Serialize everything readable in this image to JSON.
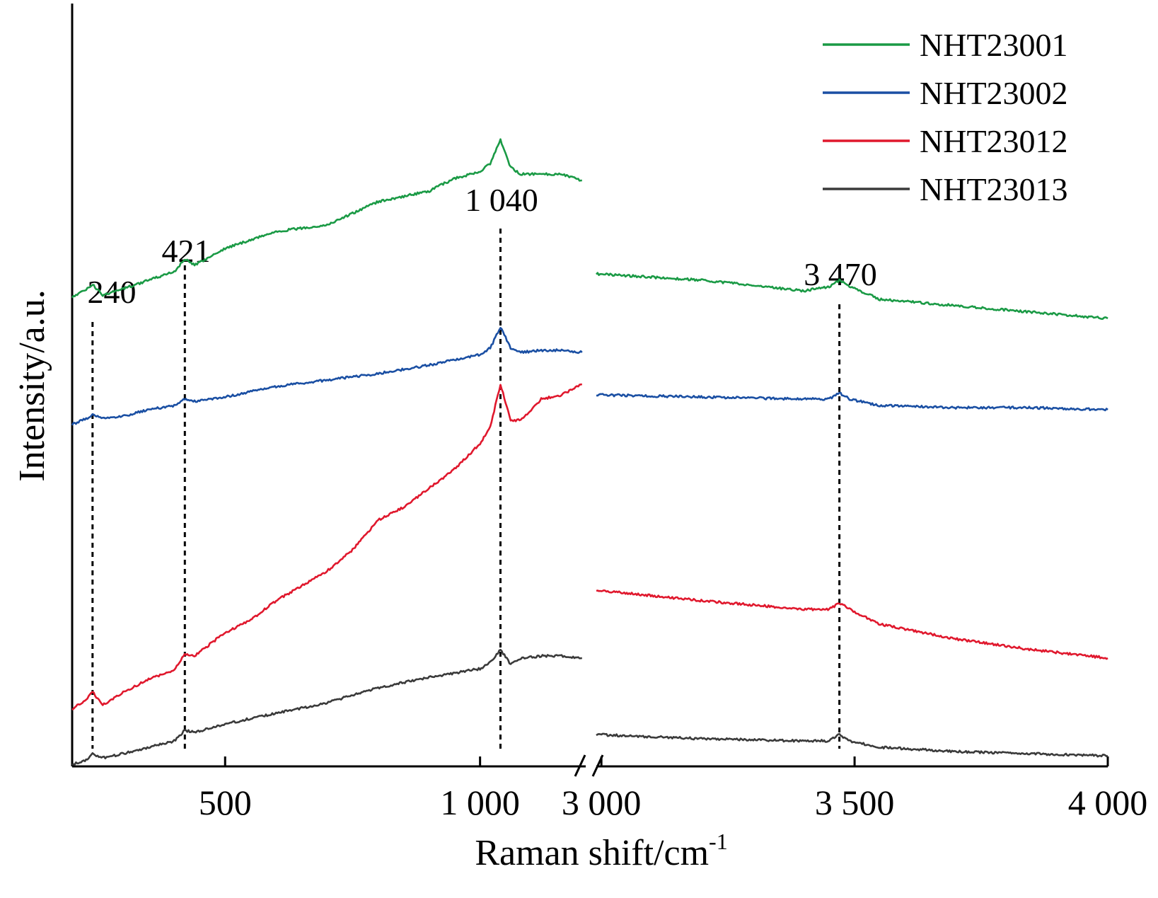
{
  "chart_data": {
    "type": "line",
    "xlabel": "Raman shift/cm",
    "xlabel_superscript": "-1",
    "ylabel": "Intensity/a.u.",
    "y_ticks": "none",
    "x_axis_break": true,
    "segments": [
      {
        "xlim": [
          200,
          1210
        ],
        "ticks": [
          {
            "value": 500,
            "label": "500"
          },
          {
            "value": 1000,
            "label": "1 000"
          }
        ]
      },
      {
        "xlim": [
          2990,
          4000
        ],
        "ticks": [
          {
            "value": 3000,
            "label": "3 000"
          },
          {
            "value": 3500,
            "label": "3 500"
          },
          {
            "value": 4000,
            "label": "4 000"
          }
        ]
      }
    ],
    "legend": {
      "position": "top-right"
    },
    "peaks": [
      {
        "x": 240,
        "label": "240"
      },
      {
        "x": 421,
        "label": "421"
      },
      {
        "x": 1040,
        "label": "1 040"
      },
      {
        "x": 3470,
        "label": "3 470"
      }
    ],
    "series": [
      {
        "name": "NHT23001",
        "color": "#1a9a45",
        "left": {
          "x": [
            200,
            230,
            240,
            260,
            300,
            350,
            400,
            421,
            440,
            500,
            600,
            700,
            800,
            900,
            950,
            1000,
            1020,
            1040,
            1060,
            1080,
            1120,
            1160,
            1200
          ],
          "y": [
            0.6,
            0.62,
            0.63,
            0.605,
            0.62,
            0.64,
            0.66,
            0.69,
            0.675,
            0.715,
            0.755,
            0.77,
            0.825,
            0.85,
            0.88,
            0.895,
            0.915,
            0.97,
            0.905,
            0.89,
            0.89,
            0.89,
            0.875
          ]
        },
        "right": {
          "x": [
            2990,
            3200,
            3400,
            3450,
            3470,
            3490,
            3550,
            3700,
            3850,
            4000
          ],
          "y": [
            0.655,
            0.64,
            0.615,
            0.625,
            0.64,
            0.625,
            0.595,
            0.58,
            0.565,
            0.55
          ]
        }
      },
      {
        "name": "NHT23002",
        "color": "#1a4fa3",
        "left": {
          "x": [
            200,
            230,
            240,
            260,
            300,
            350,
            400,
            421,
            440,
            500,
            600,
            700,
            800,
            900,
            1000,
            1020,
            1040,
            1060,
            1080,
            1120,
            1160,
            1200
          ],
          "y": [
            0.3,
            0.315,
            0.325,
            0.315,
            0.32,
            0.335,
            0.345,
            0.36,
            0.355,
            0.365,
            0.39,
            0.405,
            0.42,
            0.44,
            0.465,
            0.48,
            0.53,
            0.48,
            0.47,
            0.475,
            0.475,
            0.47
          ]
        },
        "right": {
          "x": [
            2990,
            3200,
            3400,
            3450,
            3470,
            3490,
            3550,
            3700,
            3850,
            4000
          ],
          "y": [
            0.37,
            0.365,
            0.36,
            0.36,
            0.375,
            0.36,
            0.345,
            0.34,
            0.34,
            0.335
          ]
        }
      },
      {
        "name": "NHT23012",
        "color": "#e0182d",
        "left": {
          "x": [
            200,
            230,
            240,
            260,
            300,
            350,
            400,
            421,
            440,
            500,
            550,
            600,
            700,
            750,
            800,
            850,
            900,
            950,
            1000,
            1020,
            1040,
            1060,
            1080,
            1120,
            1160,
            1200
          ],
          "y": [
            -0.37,
            -0.345,
            -0.33,
            -0.36,
            -0.33,
            -0.3,
            -0.28,
            -0.24,
            -0.245,
            -0.19,
            -0.16,
            -0.115,
            -0.045,
            0.005,
            0.075,
            0.105,
            0.15,
            0.195,
            0.255,
            0.295,
            0.395,
            0.31,
            0.31,
            0.36,
            0.37,
            0.395
          ]
        },
        "right": {
          "x": [
            2990,
            3200,
            3400,
            3450,
            3470,
            3490,
            3550,
            3700,
            3850,
            4000
          ],
          "y": [
            -0.09,
            -0.115,
            -0.135,
            -0.135,
            -0.12,
            -0.135,
            -0.17,
            -0.205,
            -0.23,
            -0.25
          ]
        }
      },
      {
        "name": "NHT23013",
        "color": "#3a3a3a",
        "left": {
          "x": [
            200,
            230,
            240,
            260,
            300,
            350,
            400,
            421,
            440,
            500,
            600,
            700,
            800,
            900,
            1000,
            1020,
            1040,
            1060,
            1080,
            1120,
            1160,
            1200
          ],
          "y": [
            -0.5,
            -0.49,
            -0.475,
            -0.485,
            -0.475,
            -0.46,
            -0.445,
            -0.42,
            -0.425,
            -0.405,
            -0.38,
            -0.355,
            -0.32,
            -0.295,
            -0.275,
            -0.26,
            -0.23,
            -0.265,
            -0.25,
            -0.245,
            -0.245,
            -0.25
          ]
        },
        "right": {
          "x": [
            2990,
            3200,
            3400,
            3450,
            3470,
            3490,
            3550,
            3700,
            3850,
            4000
          ],
          "y": [
            -0.43,
            -0.44,
            -0.445,
            -0.445,
            -0.43,
            -0.445,
            -0.46,
            -0.47,
            -0.475,
            -0.48
          ]
        }
      }
    ]
  }
}
